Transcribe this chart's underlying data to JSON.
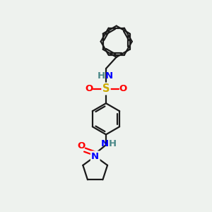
{
  "background_color": "#eef2ee",
  "bond_color": "#1a1a1a",
  "N_color": "#0000ff",
  "O_color": "#ff0000",
  "S_color": "#ccaa00",
  "H_color": "#4a8888",
  "linewidth": 1.6,
  "figsize": [
    3.0,
    3.0
  ],
  "dpi": 100,
  "xlim": [
    0,
    10
  ],
  "ylim": [
    0,
    10
  ]
}
